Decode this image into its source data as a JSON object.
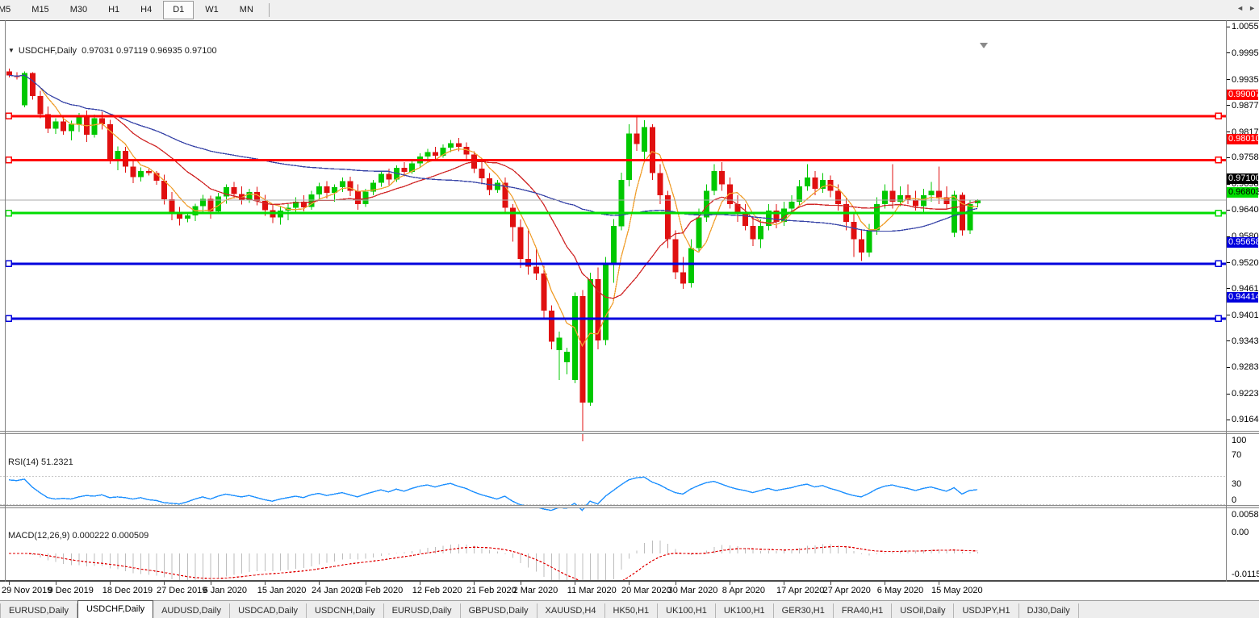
{
  "toolbar": {
    "timeframes": [
      "M5",
      "M15",
      "M30",
      "H1",
      "H4",
      "D1",
      "W1",
      "MN"
    ],
    "active": "D1"
  },
  "chart": {
    "symbol_label": "USDCHF,Daily",
    "ohlc_text": "0.97031 0.97119 0.96935 0.97100",
    "current_price": "0.97100"
  },
  "chart_data": {
    "type": "candlestick",
    "symbol": "USDCHF",
    "timeframe": "Daily",
    "title": "USDCHF,Daily 0.97031 0.97119 0.96935 0.97100",
    "price_range": {
      "max": 1.00705,
      "min": 0.9139
    },
    "price_axis_ticks": [
      "1.00555",
      "0.99955",
      "0.99355",
      "0.98770",
      "0.98170",
      "0.97585",
      "0.96985",
      "0.96400",
      "0.95800",
      "0.95200",
      "0.94615",
      "0.94015",
      "0.93430",
      "0.92830",
      "0.92230",
      "0.91645"
    ],
    "current_price": {
      "value": 0.971,
      "label": "0.97100",
      "box_color": "#000000",
      "text_color": "#FFFFFF",
      "line_color": "#ABABAB"
    },
    "hlines": [
      {
        "price": 0.99007,
        "label": "0.99007",
        "color": "#FF0000",
        "text_color": "#FFFFFF"
      },
      {
        "price": 0.9801,
        "label": "0.98010",
        "color": "#FF0000",
        "text_color": "#FFFFFF"
      },
      {
        "price": 0.96803,
        "label": "0.96803",
        "color": "#00DD00",
        "text_color": "#000000"
      },
      {
        "price": 0.95658,
        "label": "0.95658",
        "color": "#0000DD",
        "text_color": "#FFFFFF"
      },
      {
        "price": 0.94414,
        "label": "0.94414",
        "color": "#0000DD",
        "text_color": "#FFFFFF"
      }
    ],
    "time_labels": [
      {
        "text": "29 Nov 2019",
        "bar": 0
      },
      {
        "text": "9 Dec 2019",
        "bar": 6
      },
      {
        "text": "18 Dec 2019",
        "bar": 13
      },
      {
        "text": "27 Dec 2019",
        "bar": 20
      },
      {
        "text": "6 Jan 2020",
        "bar": 26
      },
      {
        "text": "15 Jan 2020",
        "bar": 33
      },
      {
        "text": "24 Jan 2020",
        "bar": 40
      },
      {
        "text": "3 Feb 2020",
        "bar": 46
      },
      {
        "text": "12 Feb 2020",
        "bar": 53
      },
      {
        "text": "21 Feb 2020",
        "bar": 60
      },
      {
        "text": "2 Mar 2020",
        "bar": 66
      },
      {
        "text": "11 Mar 2020",
        "bar": 73
      },
      {
        "text": "20 Mar 2020",
        "bar": 80
      },
      {
        "text": "30 Mar 2020",
        "bar": 86
      },
      {
        "text": "8 Apr 2020",
        "bar": 93
      },
      {
        "text": "17 Apr 2020",
        "bar": 100
      },
      {
        "text": "27 Apr 2020",
        "bar": 106
      },
      {
        "text": "6 May 2020",
        "bar": 113
      },
      {
        "text": "15 May 2020",
        "bar": 120
      }
    ],
    "candles": [
      [
        "2019-11-29",
        1.0002,
        1.0008,
        0.9988,
        0.9993
      ],
      [
        "2019-12-02",
        0.9993,
        1.0,
        0.9984,
        0.9989
      ],
      [
        "2019-12-03",
        0.9925,
        1.0002,
        0.992,
        0.9998
      ],
      [
        "2019-12-04",
        0.9998,
        1.0,
        0.9938,
        0.9946
      ],
      [
        "2019-12-05",
        0.9946,
        0.9958,
        0.9896,
        0.9905
      ],
      [
        "2019-12-06",
        0.9905,
        0.9922,
        0.9862,
        0.9872
      ],
      [
        "2019-12-09",
        0.9872,
        0.9896,
        0.986,
        0.9888
      ],
      [
        "2019-12-10",
        0.9888,
        0.9898,
        0.9858,
        0.9866
      ],
      [
        "2019-12-11",
        0.9866,
        0.989,
        0.9845,
        0.9882
      ],
      [
        "2019-12-12",
        0.9882,
        0.9908,
        0.9865,
        0.99
      ],
      [
        "2019-12-13",
        0.99,
        0.9913,
        0.9842,
        0.9858
      ],
      [
        "2019-12-16",
        0.9858,
        0.9904,
        0.9852,
        0.9896
      ],
      [
        "2019-12-17",
        0.9896,
        0.991,
        0.987,
        0.9882
      ],
      [
        "2019-12-18",
        0.9882,
        0.9892,
        0.9792,
        0.9803
      ],
      [
        "2019-12-19",
        0.9803,
        0.9832,
        0.9778,
        0.9822
      ],
      [
        "2019-12-20",
        0.9822,
        0.9831,
        0.9772,
        0.9786
      ],
      [
        "2019-12-23",
        0.9786,
        0.98,
        0.9748,
        0.9762
      ],
      [
        "2019-12-24",
        0.9762,
        0.9784,
        0.9752,
        0.9776
      ],
      [
        "2019-12-25",
        0.9776,
        0.978,
        0.9766,
        0.9771
      ],
      [
        "2019-12-26",
        0.9771,
        0.9776,
        0.9745,
        0.9754
      ],
      [
        "2019-12-27",
        0.9754,
        0.9768,
        0.97,
        0.9712
      ],
      [
        "2019-12-30",
        0.9712,
        0.9728,
        0.9664,
        0.9678
      ],
      [
        "2019-12-31",
        0.9678,
        0.9694,
        0.9652,
        0.9668
      ],
      [
        "2020-01-01",
        0.9668,
        0.9682,
        0.966,
        0.9675
      ],
      [
        "2020-01-02",
        0.9675,
        0.9702,
        0.9662,
        0.9696
      ],
      [
        "2020-01-03",
        0.9696,
        0.9722,
        0.968,
        0.9713
      ],
      [
        "2020-01-06",
        0.9713,
        0.972,
        0.9668,
        0.9684
      ],
      [
        "2020-01-07",
        0.9684,
        0.9726,
        0.9678,
        0.9718
      ],
      [
        "2020-01-08",
        0.9718,
        0.9746,
        0.9702,
        0.9739
      ],
      [
        "2020-01-09",
        0.9739,
        0.9751,
        0.9714,
        0.9724
      ],
      [
        "2020-01-10",
        0.9724,
        0.9741,
        0.97,
        0.9711
      ],
      [
        "2020-01-13",
        0.9711,
        0.9736,
        0.9704,
        0.9728
      ],
      [
        "2020-01-14",
        0.9728,
        0.974,
        0.9698,
        0.9708
      ],
      [
        "2020-01-15",
        0.9708,
        0.9722,
        0.9674,
        0.9687
      ],
      [
        "2020-01-16",
        0.9687,
        0.97,
        0.9658,
        0.9671
      ],
      [
        "2020-01-17",
        0.9671,
        0.9696,
        0.9654,
        0.9686
      ],
      [
        "2020-01-20",
        0.9686,
        0.9702,
        0.9664,
        0.9693
      ],
      [
        "2020-01-21",
        0.9693,
        0.9716,
        0.968,
        0.9706
      ],
      [
        "2020-01-22",
        0.9706,
        0.9721,
        0.9684,
        0.9694
      ],
      [
        "2020-01-23",
        0.9694,
        0.9731,
        0.9688,
        0.9723
      ],
      [
        "2020-01-24",
        0.9723,
        0.9749,
        0.971,
        0.9741
      ],
      [
        "2020-01-27",
        0.9741,
        0.9753,
        0.9714,
        0.9726
      ],
      [
        "2020-01-28",
        0.9726,
        0.9746,
        0.9706,
        0.9739
      ],
      [
        "2020-01-29",
        0.9739,
        0.9761,
        0.9728,
        0.9753
      ],
      [
        "2020-01-30",
        0.9753,
        0.9763,
        0.9719,
        0.9731
      ],
      [
        "2020-01-31",
        0.9731,
        0.9746,
        0.9688,
        0.9701
      ],
      [
        "2020-02-03",
        0.9701,
        0.9736,
        0.9694,
        0.9729
      ],
      [
        "2020-02-04",
        0.9729,
        0.9756,
        0.9721,
        0.9749
      ],
      [
        "2020-02-05",
        0.9749,
        0.9776,
        0.974,
        0.9769
      ],
      [
        "2020-02-06",
        0.9769,
        0.9781,
        0.9744,
        0.9757
      ],
      [
        "2020-02-07",
        0.9757,
        0.9789,
        0.9751,
        0.9783
      ],
      [
        "2020-02-10",
        0.9783,
        0.9796,
        0.9764,
        0.9774
      ],
      [
        "2020-02-11",
        0.9774,
        0.9801,
        0.9769,
        0.9793
      ],
      [
        "2020-02-12",
        0.9793,
        0.9816,
        0.9786,
        0.9809
      ],
      [
        "2020-02-13",
        0.9809,
        0.9826,
        0.9794,
        0.9819
      ],
      [
        "2020-02-14",
        0.9819,
        0.9831,
        0.9799,
        0.9811
      ],
      [
        "2020-02-17",
        0.9811,
        0.9836,
        0.9806,
        0.9829
      ],
      [
        "2020-02-18",
        0.9829,
        0.9846,
        0.9819,
        0.9839
      ],
      [
        "2020-02-19",
        0.9839,
        0.9851,
        0.9821,
        0.9831
      ],
      [
        "2020-02-20",
        0.9831,
        0.9841,
        0.9801,
        0.9813
      ],
      [
        "2020-02-21",
        0.9813,
        0.9821,
        0.9771,
        0.9781
      ],
      [
        "2020-02-24",
        0.9781,
        0.9801,
        0.9746,
        0.9759
      ],
      [
        "2020-02-25",
        0.9759,
        0.9771,
        0.9721,
        0.9733
      ],
      [
        "2020-02-26",
        0.9733,
        0.9756,
        0.9726,
        0.9749
      ],
      [
        "2020-02-27",
        0.9749,
        0.9761,
        0.9681,
        0.9693
      ],
      [
        "2020-02-28",
        0.9693,
        0.9701,
        0.9616,
        0.9649
      ],
      [
        "2020-03-02",
        0.9649,
        0.9666,
        0.9556,
        0.9576
      ],
      [
        "2020-03-03",
        0.9576,
        0.9641,
        0.9541,
        0.9559
      ],
      [
        "2020-03-04",
        0.9559,
        0.9601,
        0.9529,
        0.9543
      ],
      [
        "2020-03-05",
        0.9543,
        0.9561,
        0.9441,
        0.9459
      ],
      [
        "2020-03-06",
        0.9459,
        0.9471,
        0.9371,
        0.9389
      ],
      [
        "2020-03-09",
        0.937,
        0.9412,
        0.9302,
        0.9398
      ],
      [
        "2020-03-10",
        0.9342,
        0.9375,
        0.9315,
        0.9366
      ],
      [
        "2020-03-11",
        0.9302,
        0.95,
        0.9295,
        0.9492
      ],
      [
        "2020-03-12",
        0.9492,
        0.9506,
        0.9163,
        0.9251
      ],
      [
        "2020-03-13",
        0.9251,
        0.9545,
        0.9243,
        0.9531
      ],
      [
        "2020-03-16",
        0.9531,
        0.9557,
        0.9371,
        0.9392
      ],
      [
        "2020-03-17",
        0.9392,
        0.9581,
        0.9381,
        0.9563
      ],
      [
        "2020-03-18",
        0.9563,
        0.9667,
        0.9522,
        0.9651
      ],
      [
        "2020-03-19",
        0.9651,
        0.9772,
        0.9641,
        0.9756
      ],
      [
        "2020-03-20",
        0.9756,
        0.9882,
        0.9741,
        0.9861
      ],
      [
        "2020-03-23",
        0.9861,
        0.9901,
        0.9822,
        0.9837
      ],
      [
        "2020-03-24",
        0.982,
        0.9891,
        0.9801,
        0.9876
      ],
      [
        "2020-03-25",
        0.9876,
        0.9882,
        0.9756,
        0.9771
      ],
      [
        "2020-03-26",
        0.9771,
        0.9791,
        0.9701,
        0.9721
      ],
      [
        "2020-03-27",
        0.9721,
        0.9731,
        0.9601,
        0.9621
      ],
      [
        "2020-03-30",
        0.9621,
        0.9641,
        0.9531,
        0.9546
      ],
      [
        "2020-03-31",
        0.9546,
        0.9581,
        0.9509,
        0.9521
      ],
      [
        "2020-04-01",
        0.9521,
        0.9621,
        0.9511,
        0.9601
      ],
      [
        "2020-04-02",
        0.9601,
        0.9691,
        0.9591,
        0.9671
      ],
      [
        "2020-04-03",
        0.9671,
        0.9746,
        0.9661,
        0.9731
      ],
      [
        "2020-04-06",
        0.9731,
        0.9791,
        0.9721,
        0.9776
      ],
      [
        "2020-04-07",
        0.9776,
        0.9796,
        0.9731,
        0.9746
      ],
      [
        "2020-04-08",
        0.9746,
        0.9761,
        0.9691,
        0.9701
      ],
      [
        "2020-04-09",
        0.9701,
        0.9721,
        0.9661,
        0.9681
      ],
      [
        "2020-04-10",
        0.9681,
        0.9701,
        0.9641,
        0.9651
      ],
      [
        "2020-04-13",
        0.9651,
        0.9671,
        0.9606,
        0.9621
      ],
      [
        "2020-04-14",
        0.9621,
        0.9666,
        0.9601,
        0.9651
      ],
      [
        "2020-04-15",
        0.9651,
        0.9701,
        0.9641,
        0.9686
      ],
      [
        "2020-04-16",
        0.9686,
        0.9701,
        0.9646,
        0.9661
      ],
      [
        "2020-04-17",
        0.9661,
        0.9706,
        0.9651,
        0.9691
      ],
      [
        "2020-04-20",
        0.9691,
        0.9721,
        0.9681,
        0.9706
      ],
      [
        "2020-04-21",
        0.9706,
        0.9756,
        0.9696,
        0.9741
      ],
      [
        "2020-04-22",
        0.9741,
        0.9791,
        0.9731,
        0.9761
      ],
      [
        "2020-04-23",
        0.9761,
        0.9776,
        0.9721,
        0.9736
      ],
      [
        "2020-04-24",
        0.9736,
        0.9771,
        0.9726,
        0.9756
      ],
      [
        "2020-04-27",
        0.9756,
        0.9766,
        0.9716,
        0.9731
      ],
      [
        "2020-04-28",
        0.9731,
        0.9746,
        0.9686,
        0.9701
      ],
      [
        "2020-04-29",
        0.9701,
        0.9716,
        0.9641,
        0.9661
      ],
      [
        "2020-04-30",
        0.9661,
        0.9681,
        0.9581,
        0.9621
      ],
      [
        "2020-05-01",
        0.9621,
        0.9641,
        0.9572,
        0.9591
      ],
      [
        "2020-05-04",
        0.9591,
        0.9656,
        0.9581,
        0.9641
      ],
      [
        "2020-05-05",
        0.9641,
        0.9716,
        0.9631,
        0.9701
      ],
      [
        "2020-05-06",
        0.9701,
        0.9746,
        0.9691,
        0.9731
      ],
      [
        "2020-05-07",
        0.9731,
        0.9791,
        0.9691,
        0.9706
      ],
      [
        "2020-05-08",
        0.9706,
        0.9741,
        0.9696,
        0.9721
      ],
      [
        "2020-05-11",
        0.9721,
        0.9746,
        0.9701,
        0.9711
      ],
      [
        "2020-05-12",
        0.9711,
        0.9731,
        0.9686,
        0.9696
      ],
      [
        "2020-05-13",
        0.9696,
        0.9736,
        0.9681,
        0.9721
      ],
      [
        "2020-05-14",
        0.9721,
        0.9751,
        0.9706,
        0.9731
      ],
      [
        "2020-05-15",
        0.9731,
        0.9786,
        0.9701,
        0.9716
      ],
      [
        "2020-05-18",
        0.9716,
        0.9741,
        0.9691,
        0.9701
      ],
      [
        "2020-05-19",
        0.9636,
        0.9731,
        0.9626,
        0.9722
      ],
      [
        "2020-05-20",
        0.9722,
        0.9727,
        0.9629,
        0.9641
      ],
      [
        "2020-05-21",
        0.9641,
        0.9711,
        0.9633,
        0.9701
      ],
      [
        "2020-05-22",
        0.97031,
        0.97119,
        0.96935,
        0.971
      ]
    ],
    "moving_averages": [
      {
        "name": "ma-fast",
        "period": 5,
        "color": "#F0A030"
      },
      {
        "name": "ma-mid",
        "period": 14,
        "color": "#D02828"
      },
      {
        "name": "ma-slow",
        "period": 50,
        "color": "#3A46A8"
      }
    ],
    "rsi": {
      "label": "RSI(14) 51.2321",
      "period": 14,
      "value": 51.2321,
      "levels": [
        70,
        30
      ],
      "range": [
        0,
        100
      ],
      "axis_ticks": [
        "100",
        "70",
        "30",
        "0"
      ],
      "color": "#1E90FF",
      "series": [
        65,
        64,
        66,
        55,
        47,
        40,
        38,
        39,
        38,
        41,
        43,
        42,
        44,
        40,
        41,
        40,
        38,
        40,
        37,
        36,
        33,
        32,
        31,
        34,
        38,
        41,
        38,
        42,
        45,
        43,
        41,
        43,
        40,
        37,
        35,
        38,
        40,
        42,
        40,
        44,
        46,
        43,
        45,
        47,
        44,
        41,
        45,
        48,
        51,
        48,
        52,
        49,
        53,
        56,
        58,
        55,
        58,
        60,
        56,
        53,
        48,
        44,
        41,
        38,
        42,
        35,
        30,
        28,
        27,
        24,
        22,
        26,
        25,
        32,
        22,
        35,
        31,
        42,
        50,
        58,
        65,
        68,
        69,
        62,
        58,
        52,
        47,
        45,
        52,
        57,
        61,
        63,
        59,
        55,
        52,
        50,
        47,
        50,
        53,
        50,
        52,
        54,
        57,
        59,
        55,
        57,
        53,
        50,
        46,
        43,
        41,
        46,
        52,
        56,
        58,
        55,
        53,
        50,
        53,
        55,
        52,
        49,
        54,
        45,
        50,
        51.23
      ]
    },
    "macd": {
      "label": "MACD(12,26,9) 0.000222 0.000509",
      "fast": 12,
      "slow": 26,
      "signal": 9,
      "macd_value": 0.000222,
      "signal_value": 0.000509,
      "axis_ticks": [
        "0.005818",
        "0.00",
        "-0.01151"
      ],
      "hist_color": "#BDBDBD",
      "signal_color": "#E00000"
    }
  },
  "tabs": {
    "items": [
      "EURUSD,Daily",
      "USDCHF,Daily",
      "AUDUSD,Daily",
      "USDCAD,Daily",
      "USDCNH,Daily",
      "EURUSD,Daily",
      "GBPUSD,Daily",
      "XAUUSD,H4",
      "HK50,H1",
      "UK100,H1",
      "UK100,H1",
      "GER30,H1",
      "FRA40,H1",
      "USOil,Daily",
      "USDJPY,H1",
      "DJ30,Daily"
    ],
    "active_index": 1
  },
  "colors": {
    "bull": "#00C800",
    "bear": "#E01010",
    "background": "#FFFFFF",
    "chrome": "#F0F0F0"
  }
}
